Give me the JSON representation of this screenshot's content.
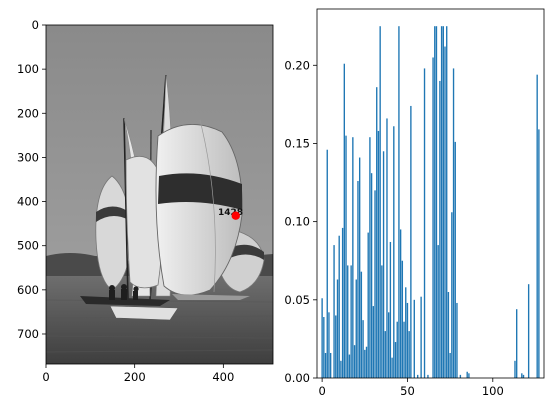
{
  "chart_data": [
    {
      "type": "image",
      "title": "",
      "xlabel": "",
      "ylabel": "",
      "xlim": [
        0,
        512
      ],
      "ylim": [
        768,
        0
      ],
      "xticks": [
        0,
        200,
        400
      ],
      "yticks": [
        0,
        100,
        200,
        300,
        400,
        500,
        600,
        700
      ],
      "marker": {
        "x": 428,
        "y": 432,
        "color": "#ff0000"
      },
      "grayscale": true
    },
    {
      "type": "bar",
      "title": "",
      "xlabel": "",
      "ylabel": "",
      "xlim": [
        -3,
        130
      ],
      "ylim": [
        0,
        0.236
      ],
      "xticks": [
        0,
        50,
        100
      ],
      "yticks": [
        0.0,
        0.05,
        0.1,
        0.15,
        0.2
      ],
      "bar_color": "#1f77b4",
      "x": [
        0,
        1,
        2,
        3,
        4,
        5,
        6,
        7,
        8,
        9,
        10,
        11,
        12,
        13,
        14,
        15,
        16,
        17,
        18,
        19,
        20,
        21,
        22,
        23,
        24,
        25,
        26,
        27,
        28,
        29,
        30,
        31,
        32,
        33,
        34,
        35,
        36,
        37,
        38,
        39,
        40,
        41,
        42,
        43,
        44,
        45,
        46,
        47,
        48,
        49,
        50,
        51,
        52,
        53,
        54,
        55,
        56,
        57,
        58,
        59,
        60,
        61,
        62,
        63,
        64,
        65,
        66,
        67,
        68,
        69,
        70,
        71,
        72,
        73,
        74,
        75,
        76,
        77,
        78,
        79,
        80,
        81,
        82,
        83,
        84,
        85,
        86,
        87,
        88,
        89,
        90,
        91,
        92,
        93,
        94,
        95,
        96,
        97,
        98,
        99,
        100,
        101,
        102,
        103,
        104,
        105,
        106,
        107,
        108,
        109,
        110,
        111,
        112,
        113,
        114,
        115,
        116,
        117,
        118,
        119,
        120,
        121,
        122,
        123,
        124,
        125,
        126,
        127
      ],
      "values": [
        0.051,
        0.039,
        0.016,
        0.146,
        0.042,
        0.016,
        0.0,
        0.085,
        0.04,
        0.063,
        0.091,
        0.011,
        0.096,
        0.201,
        0.155,
        0.072,
        0.015,
        0.072,
        0.154,
        0.021,
        0.063,
        0.126,
        0.141,
        0.068,
        0.037,
        0.018,
        0.02,
        0.093,
        0.154,
        0.131,
        0.046,
        0.12,
        0.186,
        0.158,
        0.225,
        0.072,
        0.145,
        0.03,
        0.166,
        0.042,
        0.087,
        0.013,
        0.161,
        0.023,
        0.036,
        0.225,
        0.095,
        0.075,
        0.036,
        0.058,
        0.048,
        0.03,
        0.174,
        0.0,
        0.05,
        0.0,
        0.002,
        0.0,
        0.052,
        0.0,
        0.198,
        0.0,
        0.002,
        0.0,
        0.0,
        0.205,
        0.225,
        0.225,
        0.085,
        0.19,
        0.225,
        0.225,
        0.212,
        0.225,
        0.055,
        0.016,
        0.106,
        0.198,
        0.151,
        0.048,
        0.0,
        0.002,
        0.0,
        0.0,
        0.0,
        0.004,
        0.003,
        0.0,
        0.0,
        0.0,
        0.0,
        0.0,
        0.0,
        0.0,
        0.0,
        0.0,
        0.0,
        0.0,
        0.0,
        0.0,
        0.0,
        0.0,
        0.0,
        0.0,
        0.0,
        0.0,
        0.0,
        0.0,
        0.0,
        0.0,
        0.0,
        0.0,
        0.0,
        0.011,
        0.044,
        0.0,
        0.0,
        0.003,
        0.002,
        0.0,
        0.0,
        0.06,
        0.0,
        0.0,
        0.0,
        0.0,
        0.194,
        0.159
      ]
    }
  ]
}
